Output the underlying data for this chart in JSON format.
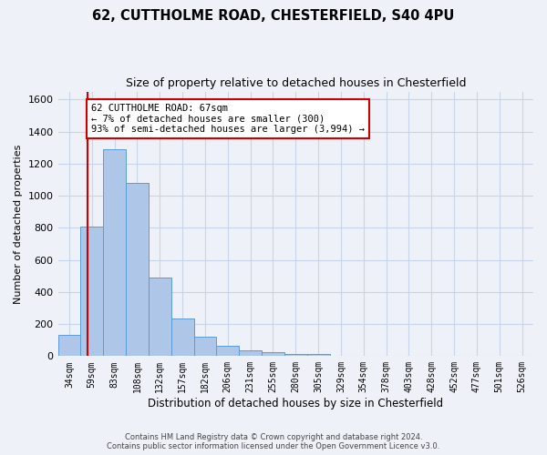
{
  "title_line1": "62, CUTTHOLME ROAD, CHESTERFIELD, S40 4PU",
  "title_line2": "Size of property relative to detached houses in Chesterfield",
  "xlabel": "Distribution of detached houses by size in Chesterfield",
  "ylabel": "Number of detached properties",
  "categories": [
    "34sqm",
    "59sqm",
    "83sqm",
    "108sqm",
    "132sqm",
    "157sqm",
    "182sqm",
    "206sqm",
    "231sqm",
    "255sqm",
    "280sqm",
    "305sqm",
    "329sqm",
    "354sqm",
    "378sqm",
    "403sqm",
    "428sqm",
    "452sqm",
    "477sqm",
    "501sqm",
    "526sqm"
  ],
  "values": [
    130,
    810,
    1290,
    1080,
    490,
    235,
    120,
    65,
    38,
    22,
    14,
    14,
    0,
    0,
    0,
    0,
    0,
    0,
    0,
    0,
    0
  ],
  "bar_color": "#aec6e8",
  "bar_edge_color": "#5b9bd5",
  "grid_color": "#c8d4e8",
  "annotation_text_line1": "62 CUTTHOLME ROAD: 67sqm",
  "annotation_text_line2": "← 7% of detached houses are smaller (300)",
  "annotation_text_line3": "93% of semi-detached houses are larger (3,994) →",
  "annotation_box_color": "#ffffff",
  "annotation_box_edge": "#cc0000",
  "vline_color": "#cc0000",
  "ylim": [
    0,
    1650
  ],
  "yticks": [
    0,
    200,
    400,
    600,
    800,
    1000,
    1200,
    1400,
    1600
  ],
  "footer_line1": "Contains HM Land Registry data © Crown copyright and database right 2024.",
  "footer_line2": "Contains public sector information licensed under the Open Government Licence v3.0.",
  "bg_color": "#eef2f8"
}
